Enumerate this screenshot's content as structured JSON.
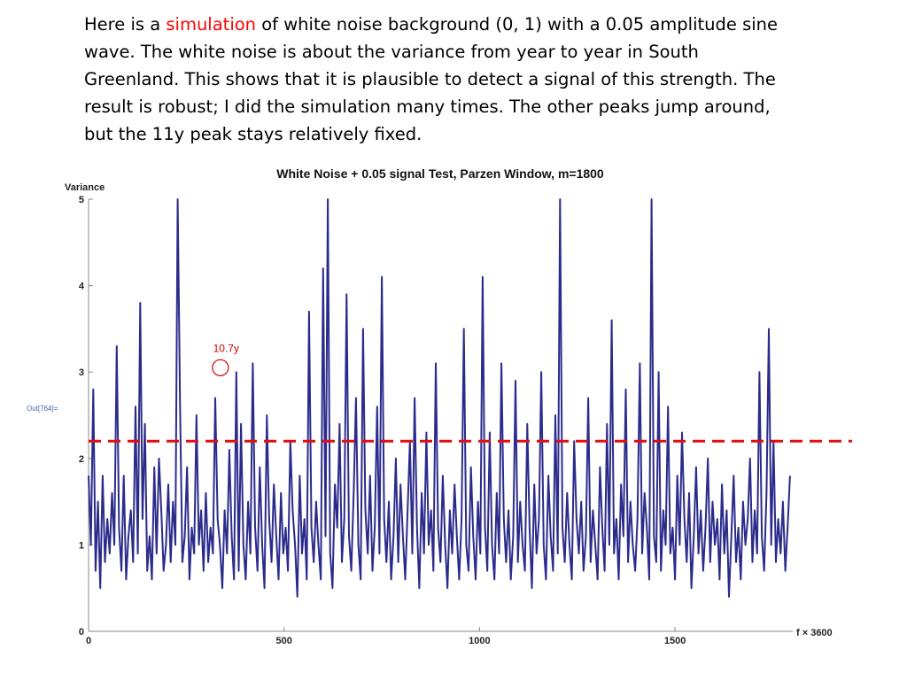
{
  "caption": {
    "before": "Here is a ",
    "highlight": "simulation",
    "after": " of white noise background (0, 1) with a 0.05 amplitude sine wave. The white noise is about the variance from year to year in South Greenland. This shows that it is plausible to detect a signal of this strength. The result is robust; I did the simulation many times. The other peaks jump around, but the 11y peak stays relatively fixed.",
    "highlight_color": "#ff0000"
  },
  "out_label": "Out[764]=",
  "chart_data": {
    "type": "line",
    "title": "White Noise + 0.05 signal Test, Parzen Window, m=1800",
    "xlabel": "f × 3600",
    "ylabel": "Variance",
    "xlim": [
      0,
      1800
    ],
    "ylim": [
      0,
      5
    ],
    "x_ticks": [
      0,
      500,
      1000,
      1500
    ],
    "y_ticks": [
      0,
      1,
      2,
      3,
      4,
      5
    ],
    "line_color": "#2b2b8c",
    "threshold": {
      "value": 2.2,
      "color": "#e01010",
      "style": "dashed"
    },
    "annotation": {
      "text": "10.7y",
      "x": 336,
      "y": 3.05,
      "color": "#d40000"
    },
    "series": [
      {
        "x": [
          0,
          6,
          12,
          18,
          24,
          30,
          36,
          42,
          48,
          54,
          60,
          66,
          72,
          78,
          84,
          90,
          96,
          102,
          108,
          114,
          120,
          126,
          132,
          138,
          144,
          150,
          156,
          162,
          168,
          174,
          180,
          186,
          192,
          198,
          204,
          210,
          216,
          222,
          228,
          234,
          240,
          246,
          252,
          258,
          264,
          270,
          276,
          282,
          288,
          294,
          300,
          306,
          312,
          318,
          324,
          330,
          336,
          342,
          348,
          354,
          360,
          366,
          372,
          378,
          384,
          390,
          396,
          402,
          408,
          414,
          420,
          426,
          432,
          438,
          444,
          450,
          456,
          462,
          468,
          474,
          480,
          486,
          492,
          498,
          504,
          510,
          516,
          522,
          528,
          534,
          540,
          546,
          552,
          558,
          564,
          570,
          576,
          582,
          588,
          594,
          600,
          606,
          612,
          618,
          624,
          630,
          636,
          642,
          648,
          654,
          660,
          666,
          672,
          678,
          684,
          690,
          696,
          702,
          708,
          714,
          720,
          726,
          732,
          738,
          744,
          750,
          756,
          762,
          768,
          774,
          780,
          786,
          792,
          798,
          804,
          810,
          816,
          822,
          828,
          834,
          840,
          846,
          852,
          858,
          864,
          870,
          876,
          882,
          888,
          894,
          900,
          906,
          912,
          918,
          924,
          930,
          936,
          942,
          948,
          954,
          960,
          966,
          972,
          978,
          984,
          990,
          996,
          1002,
          1008,
          1014,
          1020,
          1026,
          1032,
          1038,
          1044,
          1050,
          1056,
          1062,
          1068,
          1074,
          1080,
          1086,
          1092,
          1098,
          1104,
          1110,
          1116,
          1122,
          1128,
          1134,
          1140,
          1146,
          1152,
          1158,
          1164,
          1170,
          1176,
          1182,
          1188,
          1194,
          1200,
          1206,
          1212,
          1218,
          1224,
          1230,
          1236,
          1242,
          1248,
          1254,
          1260,
          1266,
          1272,
          1278,
          1284,
          1290,
          1296,
          1302,
          1308,
          1314,
          1320,
          1326,
          1332,
          1338,
          1344,
          1350,
          1356,
          1362,
          1368,
          1374,
          1380,
          1386,
          1392,
          1398,
          1404,
          1410,
          1416,
          1422,
          1428,
          1434,
          1440,
          1446,
          1452,
          1458,
          1464,
          1470,
          1476,
          1482,
          1488,
          1494,
          1500,
          1506,
          1512,
          1518,
          1524,
          1530,
          1536,
          1542,
          1548,
          1554,
          1560,
          1566,
          1572,
          1578,
          1584,
          1590,
          1596,
          1602,
          1608,
          1614,
          1620,
          1626,
          1632,
          1638,
          1644,
          1650,
          1656,
          1662,
          1668,
          1674,
          1680,
          1686,
          1692,
          1698,
          1704,
          1710,
          1716,
          1722,
          1728,
          1734,
          1740,
          1746,
          1752,
          1758,
          1764,
          1770,
          1776,
          1782,
          1788,
          1794
        ],
        "y": [
          1.8,
          1.0,
          2.8,
          0.7,
          1.5,
          0.5,
          1.8,
          0.8,
          1.3,
          0.9,
          1.6,
          1.0,
          3.3,
          1.2,
          0.7,
          1.8,
          0.6,
          1.1,
          1.4,
          0.8,
          2.6,
          0.9,
          3.8,
          1.3,
          2.4,
          0.7,
          1.1,
          0.6,
          1.9,
          0.9,
          2.0,
          1.4,
          0.7,
          1.0,
          1.7,
          0.8,
          1.5,
          1.0,
          5.0,
          2.6,
          0.8,
          1.1,
          1.9,
          0.6,
          1.2,
          0.9,
          2.5,
          1.0,
          1.4,
          0.7,
          1.6,
          0.8,
          1.2,
          0.9,
          2.7,
          1.3,
          1.0,
          0.5,
          1.4,
          0.9,
          2.1,
          1.1,
          0.6,
          3.0,
          0.7,
          2.4,
          1.0,
          0.6,
          1.5,
          0.9,
          3.1,
          1.2,
          0.7,
          1.9,
          1.0,
          0.5,
          2.5,
          1.3,
          0.8,
          1.7,
          1.1,
          0.6,
          1.6,
          0.9,
          1.2,
          0.7,
          2.2,
          1.4,
          1.0,
          0.4,
          1.8,
          0.9,
          1.3,
          0.6,
          3.7,
          1.2,
          0.8,
          1.5,
          1.0,
          0.6,
          4.2,
          1.1,
          5.0,
          0.9,
          0.5,
          1.7,
          1.2,
          2.4,
          0.8,
          1.3,
          3.9,
          1.1,
          0.7,
          1.6,
          2.7,
          1.0,
          0.6,
          3.5,
          1.4,
          0.9,
          1.8,
          0.7,
          1.2,
          2.6,
          0.9,
          4.1,
          1.3,
          0.8,
          1.5,
          0.6,
          1.1,
          2.0,
          0.8,
          1.7,
          1.1,
          0.6,
          1.4,
          2.2,
          0.9,
          2.7,
          1.2,
          0.5,
          1.6,
          0.9,
          2.3,
          1.0,
          1.4,
          0.7,
          3.1,
          1.2,
          0.8,
          1.8,
          1.0,
          0.5,
          1.4,
          0.9,
          1.7,
          1.1,
          0.6,
          1.3,
          3.5,
          1.0,
          0.7,
          1.9,
          1.1,
          0.6,
          1.5,
          0.9,
          4.1,
          1.2,
          0.7,
          2.3,
          1.0,
          0.6,
          1.6,
          0.9,
          3.1,
          1.3,
          0.8,
          1.4,
          0.6,
          1.1,
          2.9,
          0.8,
          1.5,
          1.0,
          0.7,
          2.4,
          1.2,
          0.5,
          1.7,
          0.9,
          1.3,
          3.0,
          1.0,
          0.6,
          1.8,
          1.1,
          0.7,
          2.5,
          0.9,
          5.0,
          1.2,
          0.8,
          1.6,
          1.0,
          0.6,
          2.2,
          1.3,
          0.9,
          1.5,
          0.7,
          1.1,
          2.7,
          0.8,
          1.4,
          1.0,
          0.6,
          1.9,
          1.2,
          0.7,
          2.4,
          1.0,
          3.6,
          0.9,
          1.3,
          0.6,
          1.7,
          1.1,
          2.8,
          0.8,
          1.5,
          1.0,
          0.7,
          1.3,
          3.1,
          0.9,
          1.6,
          1.2,
          0.6,
          5.0,
          1.1,
          0.8,
          3.0,
          0.7,
          1.4,
          1.0,
          2.6,
          0.9,
          1.2,
          0.6,
          1.8,
          1.0,
          2.3,
          1.3,
          0.8,
          1.6,
          0.5,
          1.1,
          1.9,
          0.9,
          1.4,
          0.7,
          1.2,
          2.0,
          0.8,
          1.5,
          1.0,
          1.3,
          0.6,
          1.7,
          0.9,
          1.4,
          0.4,
          1.1,
          1.8,
          0.8,
          1.2,
          0.6,
          1.5,
          1.0,
          1.3,
          2.0,
          0.8,
          1.4,
          0.9,
          3.0,
          1.1,
          0.7,
          1.6,
          3.5,
          1.0,
          2.2,
          0.8,
          1.3,
          0.9,
          1.5,
          0.7,
          1.2,
          1.8
        ]
      }
    ]
  }
}
